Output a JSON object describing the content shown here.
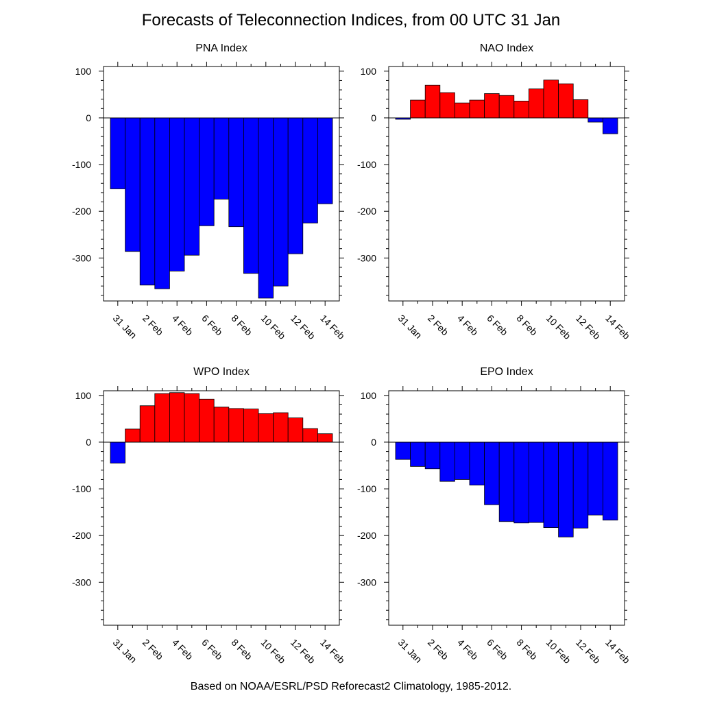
{
  "title": "Forecasts of Teleconnection Indices, from 00 UTC 31 Jan",
  "footer": "Based on NOAA/ESRL/PSD Reforecast2 Climatology, 1985-2012.",
  "colors": {
    "positive": "#ff0000",
    "negative": "#0000ff",
    "axis": "#000000",
    "background": "#ffffff"
  },
  "chart_data": [
    {
      "type": "bar",
      "title": "PNA Index",
      "categories": [
        "31 Jan",
        "1 Feb",
        "2 Feb",
        "3 Feb",
        "4 Feb",
        "5 Feb",
        "6 Feb",
        "7 Feb",
        "8 Feb",
        "9 Feb",
        "10 Feb",
        "11 Feb",
        "12 Feb",
        "13 Feb",
        "14 Feb"
      ],
      "tick_labels": [
        "31 Jan",
        "2 Feb",
        "4 Feb",
        "6 Feb",
        "8 Feb",
        "10 Feb",
        "12 Feb",
        "14 Feb"
      ],
      "values": [
        -152,
        -286,
        -358,
        -366,
        -328,
        -294,
        -231,
        -174,
        -233,
        -333,
        -386,
        -360,
        -291,
        -225,
        -184
      ],
      "ylim": [
        -392,
        110
      ],
      "yticks": [
        100,
        0,
        -100,
        -200,
        -300
      ],
      "xlabel": "",
      "ylabel": ""
    },
    {
      "type": "bar",
      "title": "NAO Index",
      "categories": [
        "31 Jan",
        "1 Feb",
        "2 Feb",
        "3 Feb",
        "4 Feb",
        "5 Feb",
        "6 Feb",
        "7 Feb",
        "8 Feb",
        "9 Feb",
        "10 Feb",
        "11 Feb",
        "12 Feb",
        "13 Feb",
        "14 Feb"
      ],
      "tick_labels": [
        "31 Jan",
        "2 Feb",
        "4 Feb",
        "6 Feb",
        "8 Feb",
        "10 Feb",
        "12 Feb",
        "14 Feb"
      ],
      "values": [
        -3,
        38,
        70,
        54,
        32,
        38,
        52,
        48,
        36,
        62,
        81,
        73,
        39,
        -9,
        -34
      ],
      "ylim": [
        -392,
        110
      ],
      "yticks": [
        100,
        0,
        -100,
        -200,
        -300
      ],
      "xlabel": "",
      "ylabel": ""
    },
    {
      "type": "bar",
      "title": "WPO Index",
      "categories": [
        "31 Jan",
        "1 Feb",
        "2 Feb",
        "3 Feb",
        "4 Feb",
        "5 Feb",
        "6 Feb",
        "7 Feb",
        "8 Feb",
        "9 Feb",
        "10 Feb",
        "11 Feb",
        "12 Feb",
        "13 Feb",
        "14 Feb"
      ],
      "tick_labels": [
        "31 Jan",
        "2 Feb",
        "4 Feb",
        "6 Feb",
        "8 Feb",
        "10 Feb",
        "12 Feb",
        "14 Feb"
      ],
      "values": [
        -45,
        28,
        78,
        104,
        106,
        104,
        92,
        75,
        72,
        71,
        61,
        63,
        52,
        29,
        18
      ],
      "ylim": [
        -392,
        110
      ],
      "yticks": [
        100,
        0,
        -100,
        -200,
        -300
      ],
      "xlabel": "",
      "ylabel": ""
    },
    {
      "type": "bar",
      "title": "EPO Index",
      "categories": [
        "31 Jan",
        "1 Feb",
        "2 Feb",
        "3 Feb",
        "4 Feb",
        "5 Feb",
        "6 Feb",
        "7 Feb",
        "8 Feb",
        "9 Feb",
        "10 Feb",
        "11 Feb",
        "12 Feb",
        "13 Feb",
        "14 Feb"
      ],
      "tick_labels": [
        "31 Jan",
        "2 Feb",
        "4 Feb",
        "6 Feb",
        "8 Feb",
        "10 Feb",
        "12 Feb",
        "14 Feb"
      ],
      "values": [
        -37,
        -52,
        -57,
        -84,
        -80,
        -92,
        -134,
        -170,
        -173,
        -172,
        -183,
        -203,
        -184,
        -156,
        -167
      ],
      "ylim": [
        -392,
        110
      ],
      "yticks": [
        100,
        0,
        -100,
        -200,
        -300
      ],
      "xlabel": "",
      "ylabel": ""
    }
  ]
}
